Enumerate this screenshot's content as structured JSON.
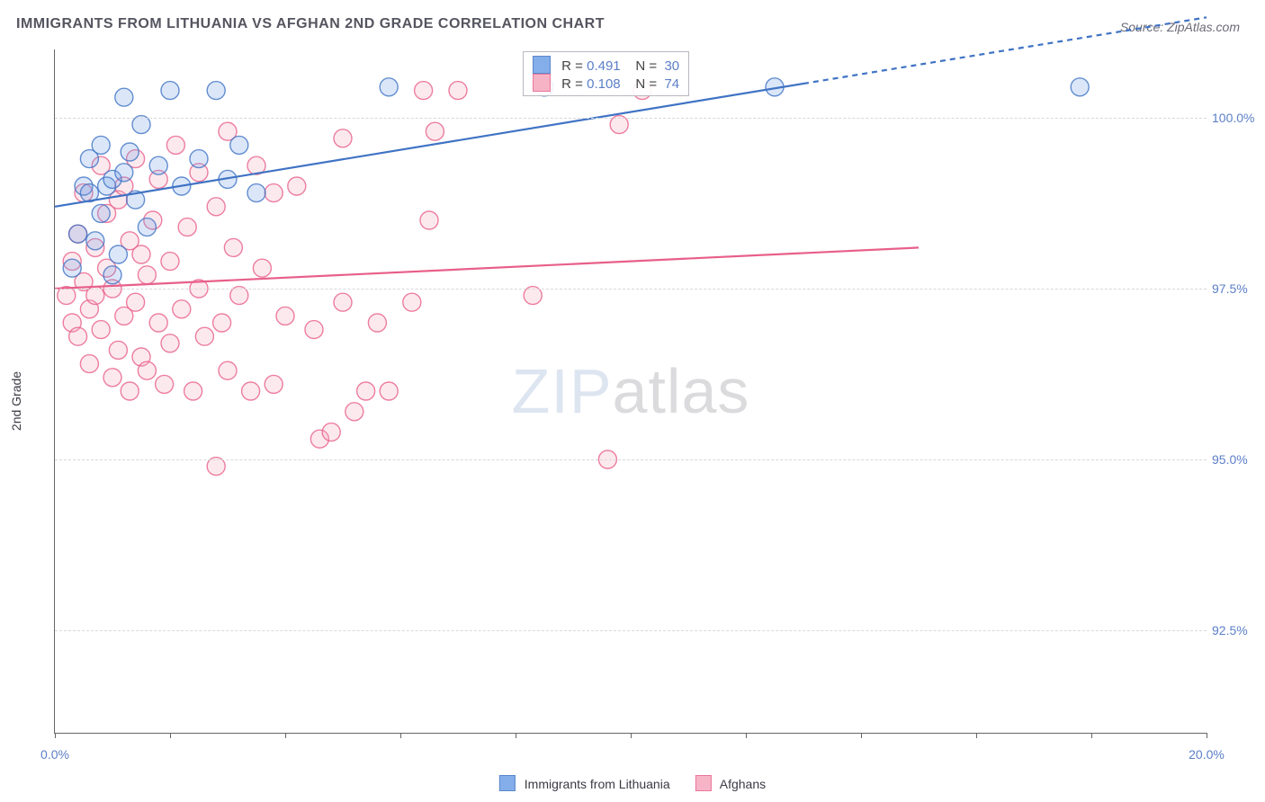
{
  "title": "IMMIGRANTS FROM LITHUANIA VS AFGHAN 2ND GRADE CORRELATION CHART",
  "source_label": "Source: ZipAtlas.com",
  "yaxis_title": "2nd Grade",
  "watermark": {
    "zip": "ZIP",
    "atlas": "atlas"
  },
  "chart": {
    "type": "scatter",
    "background_color": "#ffffff",
    "grid_color": "#d8d8dc",
    "axis_color": "#666666",
    "tick_label_color": "#5b7fc7",
    "xlim": [
      0,
      20
    ],
    "ylim": [
      91,
      101
    ],
    "xticks": [
      0,
      2,
      4,
      6,
      8,
      10,
      12,
      14,
      16,
      18,
      20
    ],
    "xtick_labels": {
      "0": "0.0%",
      "20": "20.0%"
    },
    "yticks": [
      92.5,
      95.0,
      97.5,
      100.0
    ],
    "ytick_labels": [
      "92.5%",
      "95.0%",
      "97.5%",
      "100.0%"
    ],
    "marker_radius": 10,
    "marker_fill_opacity": 0.25,
    "marker_stroke_width": 1.4,
    "line_stroke_width": 2.2
  },
  "series": {
    "lithuania": {
      "label": "Immigrants from Lithuania",
      "color_fill": "#6fa0e6",
      "color_stroke": "#3f73c4",
      "r_value": "0.491",
      "n_value": "30",
      "trend": {
        "x1": 0,
        "y1": 98.7,
        "x2": 13,
        "y2": 100.5,
        "extrap_x2": 13
      },
      "points": [
        [
          0.3,
          97.8
        ],
        [
          0.4,
          98.3
        ],
        [
          0.5,
          99.0
        ],
        [
          0.6,
          98.9
        ],
        [
          0.6,
          99.4
        ],
        [
          0.7,
          98.2
        ],
        [
          0.8,
          99.6
        ],
        [
          0.8,
          98.6
        ],
        [
          0.9,
          99.0
        ],
        [
          1.0,
          99.1
        ],
        [
          1.0,
          97.7
        ],
        [
          1.1,
          98.0
        ],
        [
          1.2,
          99.2
        ],
        [
          1.2,
          100.3
        ],
        [
          1.3,
          99.5
        ],
        [
          1.4,
          98.8
        ],
        [
          1.5,
          99.9
        ],
        [
          1.6,
          98.4
        ],
        [
          1.8,
          99.3
        ],
        [
          2.0,
          100.4
        ],
        [
          2.2,
          99.0
        ],
        [
          2.5,
          99.4
        ],
        [
          2.8,
          100.4
        ],
        [
          3.0,
          99.1
        ],
        [
          3.2,
          99.6
        ],
        [
          3.5,
          98.9
        ],
        [
          5.8,
          100.45
        ],
        [
          8.5,
          100.45
        ],
        [
          12.5,
          100.45
        ],
        [
          17.8,
          100.45
        ]
      ]
    },
    "afghans": {
      "label": "Afghans",
      "color_fill": "#f5a7bd",
      "color_stroke": "#e85f8a",
      "r_value": "0.108",
      "n_value": "74",
      "trend": {
        "x1": 0,
        "y1": 97.5,
        "x2": 15,
        "y2": 98.1,
        "extrap_x2": 20
      },
      "points": [
        [
          0.2,
          97.4
        ],
        [
          0.3,
          97.9
        ],
        [
          0.3,
          97.0
        ],
        [
          0.4,
          98.3
        ],
        [
          0.4,
          96.8
        ],
        [
          0.5,
          97.6
        ],
        [
          0.5,
          98.9
        ],
        [
          0.6,
          97.2
        ],
        [
          0.6,
          96.4
        ],
        [
          0.7,
          98.1
        ],
        [
          0.7,
          97.4
        ],
        [
          0.8,
          99.3
        ],
        [
          0.8,
          96.9
        ],
        [
          0.9,
          98.6
        ],
        [
          0.9,
          97.8
        ],
        [
          1.0,
          96.2
        ],
        [
          1.0,
          97.5
        ],
        [
          1.1,
          98.8
        ],
        [
          1.1,
          96.6
        ],
        [
          1.2,
          97.1
        ],
        [
          1.2,
          99.0
        ],
        [
          1.3,
          98.2
        ],
        [
          1.3,
          96.0
        ],
        [
          1.4,
          97.3
        ],
        [
          1.4,
          99.4
        ],
        [
          1.5,
          96.5
        ],
        [
          1.5,
          98.0
        ],
        [
          1.6,
          97.7
        ],
        [
          1.6,
          96.3
        ],
        [
          1.7,
          98.5
        ],
        [
          1.8,
          97.0
        ],
        [
          1.8,
          99.1
        ],
        [
          1.9,
          96.1
        ],
        [
          2.0,
          97.9
        ],
        [
          2.0,
          96.7
        ],
        [
          2.1,
          99.6
        ],
        [
          2.2,
          97.2
        ],
        [
          2.3,
          98.4
        ],
        [
          2.4,
          96.0
        ],
        [
          2.5,
          99.2
        ],
        [
          2.5,
          97.5
        ],
        [
          2.6,
          96.8
        ],
        [
          2.8,
          98.7
        ],
        [
          2.8,
          94.9
        ],
        [
          2.9,
          97.0
        ],
        [
          3.0,
          99.8
        ],
        [
          3.0,
          96.3
        ],
        [
          3.1,
          98.1
        ],
        [
          3.2,
          97.4
        ],
        [
          3.4,
          96.0
        ],
        [
          3.5,
          99.3
        ],
        [
          3.6,
          97.8
        ],
        [
          3.8,
          98.9
        ],
        [
          3.8,
          96.1
        ],
        [
          4.0,
          97.1
        ],
        [
          4.2,
          99.0
        ],
        [
          4.5,
          96.9
        ],
        [
          4.6,
          95.3
        ],
        [
          4.8,
          95.4
        ],
        [
          5.0,
          97.3
        ],
        [
          5.0,
          99.7
        ],
        [
          5.2,
          95.7
        ],
        [
          5.4,
          96.0
        ],
        [
          5.6,
          97.0
        ],
        [
          5.8,
          96.0
        ],
        [
          6.2,
          97.3
        ],
        [
          6.4,
          100.4
        ],
        [
          6.5,
          98.5
        ],
        [
          6.6,
          99.8
        ],
        [
          7.0,
          100.4
        ],
        [
          8.3,
          97.4
        ],
        [
          9.6,
          95.0
        ],
        [
          9.8,
          99.9
        ],
        [
          10.2,
          100.4
        ]
      ]
    }
  },
  "legend": {
    "items": [
      {
        "key": "lithuania",
        "label": "Immigrants from Lithuania"
      },
      {
        "key": "afghans",
        "label": "Afghans"
      }
    ]
  },
  "info_box": {
    "r_label": "R =",
    "n_label": "N ="
  }
}
